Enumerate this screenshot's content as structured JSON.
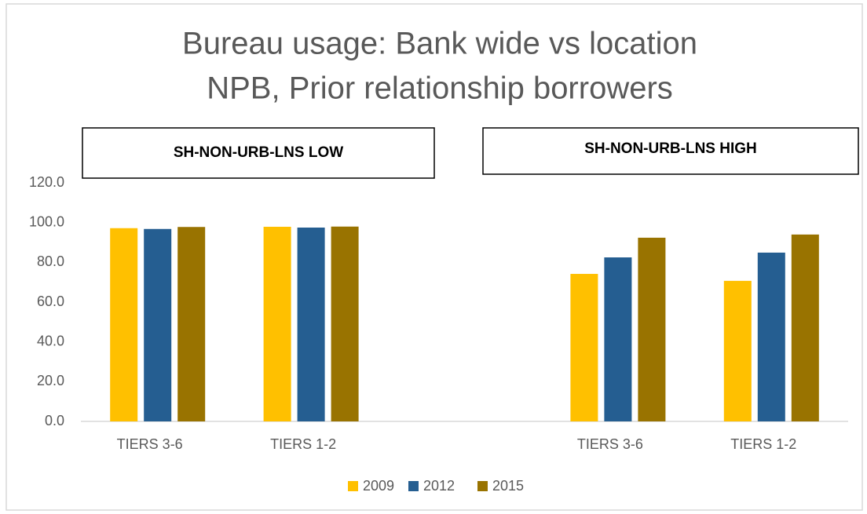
{
  "chart_data": {
    "type": "bar",
    "title": [
      "Bureau usage: Bank wide vs location",
      "NPB, Prior relationship borrowers"
    ],
    "annotations": [
      "SH-NON-URB-LNS LOW",
      "SH-NON-URB-LNS HIGH"
    ],
    "categories": [
      "TIERS 3-6",
      "TIERS 1-2",
      null,
      "TIERS 3-6",
      "TIERS 1-2"
    ],
    "series": [
      {
        "name": "2009",
        "color": "#FFC000",
        "values": [
          97.2,
          97.9,
          null,
          74.2,
          70.7
        ]
      },
      {
        "name": "2012",
        "color": "#255E91",
        "values": [
          96.8,
          97.5,
          null,
          82.5,
          84.9
        ]
      },
      {
        "name": "2015",
        "color": "#997300",
        "values": [
          97.8,
          98.0,
          null,
          92.4,
          94.0
        ]
      }
    ],
    "ylim": [
      0,
      120
    ],
    "yticks": [
      {
        "value": 0,
        "label": "0.0"
      },
      {
        "value": 20,
        "label": "20.0"
      },
      {
        "value": 40,
        "label": "40.0"
      },
      {
        "value": 60,
        "label": "60.0"
      },
      {
        "value": 80,
        "label": "80.0"
      },
      {
        "value": 100,
        "label": "100.0"
      },
      {
        "value": 120,
        "label": "120.0"
      }
    ],
    "grid": false,
    "legend": "bottom"
  }
}
